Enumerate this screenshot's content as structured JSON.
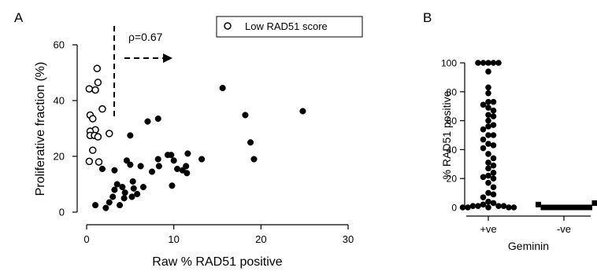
{
  "chart_data": [
    {
      "panel_label": "A",
      "type": "scatter",
      "xlabel": "Raw % RAD51 positive",
      "ylabel": "Proliferative fraction (%)",
      "xlim": [
        0,
        30
      ],
      "ylim": [
        0,
        60
      ],
      "xticks": [
        0,
        10,
        20,
        30
      ],
      "yticks": [
        0,
        20,
        40,
        60
      ],
      "grid": false,
      "legend": {
        "placement": "top-right",
        "entries": [
          {
            "label": "Low RAD51 score",
            "marker": "open-circle"
          }
        ]
      },
      "annotation": {
        "text": "ρ=0.67",
        "threshold_x": 3
      },
      "series": [
        {
          "name": "Low RAD51 score",
          "marker": "open-circle",
          "points": [
            [
              1.2,
              51.5
            ],
            [
              0.3,
              44.2
            ],
            [
              1.0,
              43.8
            ],
            [
              1.3,
              46.5
            ],
            [
              1.8,
              37.0
            ],
            [
              0.4,
              34.8
            ],
            [
              0.7,
              33.5
            ],
            [
              1.0,
              29.5
            ],
            [
              0.4,
              29.0
            ],
            [
              0.4,
              27.5
            ],
            [
              0.9,
              27.5
            ],
            [
              1.3,
              27.0
            ],
            [
              2.6,
              28.2
            ],
            [
              0.7,
              22.2
            ],
            [
              0.3,
              18.2
            ],
            [
              1.4,
              18.0
            ]
          ]
        },
        {
          "marker": "filled-circle",
          "points": [
            [
              1.0,
              2.5
            ],
            [
              1.8,
              15.5
            ],
            [
              2.2,
              1.5
            ],
            [
              2.6,
              3.5
            ],
            [
              3.2,
              15.0
            ],
            [
              3.5,
              10.0
            ],
            [
              3.2,
              8.0
            ],
            [
              3.0,
              5.5
            ],
            [
              3.8,
              2.5
            ],
            [
              4.1,
              9.0
            ],
            [
              4.3,
              5.0
            ],
            [
              4.6,
              18.5
            ],
            [
              4.4,
              7.0
            ],
            [
              5.0,
              17.0
            ],
            [
              5.0,
              27.5
            ],
            [
              5.3,
              11.0
            ],
            [
              5.2,
              5.5
            ],
            [
              5.4,
              8.5
            ],
            [
              5.8,
              6.5
            ],
            [
              6.2,
              16.5
            ],
            [
              6.5,
              9.0
            ],
            [
              7.0,
              32.5
            ],
            [
              7.5,
              14.5
            ],
            [
              8.2,
              33.5
            ],
            [
              8.2,
              19.0
            ],
            [
              8.3,
              16.5
            ],
            [
              9.3,
              20.5
            ],
            [
              9.7,
              20.5
            ],
            [
              9.8,
              9.5
            ],
            [
              10.0,
              18.5
            ],
            [
              10.4,
              15.5
            ],
            [
              11.0,
              15.0
            ],
            [
              11.4,
              16.5
            ],
            [
              11.5,
              14.0
            ],
            [
              11.6,
              21.0
            ],
            [
              13.2,
              19.0
            ],
            [
              15.6,
              44.5
            ],
            [
              18.2,
              34.8
            ],
            [
              18.8,
              25.0
            ],
            [
              19.2,
              19.0
            ],
            [
              24.8,
              36.2
            ]
          ]
        }
      ]
    },
    {
      "panel_label": "B",
      "type": "scatter",
      "xlabel": "Geminin",
      "ylabel": "% RAD51 positive",
      "categories": [
        "+ve",
        "-ve"
      ],
      "ylim": [
        0,
        100
      ],
      "yticks": [
        0,
        20,
        40,
        60,
        80,
        100
      ],
      "grid": false,
      "series": [
        {
          "category": "+ve",
          "marker": "filled-circle",
          "values": [
            100,
            100,
            100,
            100,
            100,
            94,
            83,
            79,
            73,
            73,
            71,
            69,
            67,
            64,
            63,
            60,
            57,
            56,
            54,
            50,
            50,
            47,
            44,
            43,
            41,
            37,
            34,
            31,
            29,
            27,
            24,
            22,
            21,
            20,
            17,
            14,
            10,
            9,
            7,
            4,
            3,
            2,
            1,
            1,
            1,
            1,
            0,
            0,
            0,
            0,
            0
          ]
        },
        {
          "category": "-ve",
          "marker": "filled-square",
          "values": [
            0,
            0,
            0,
            0,
            0,
            0,
            0,
            0,
            0,
            0,
            2,
            3
          ]
        }
      ]
    }
  ]
}
